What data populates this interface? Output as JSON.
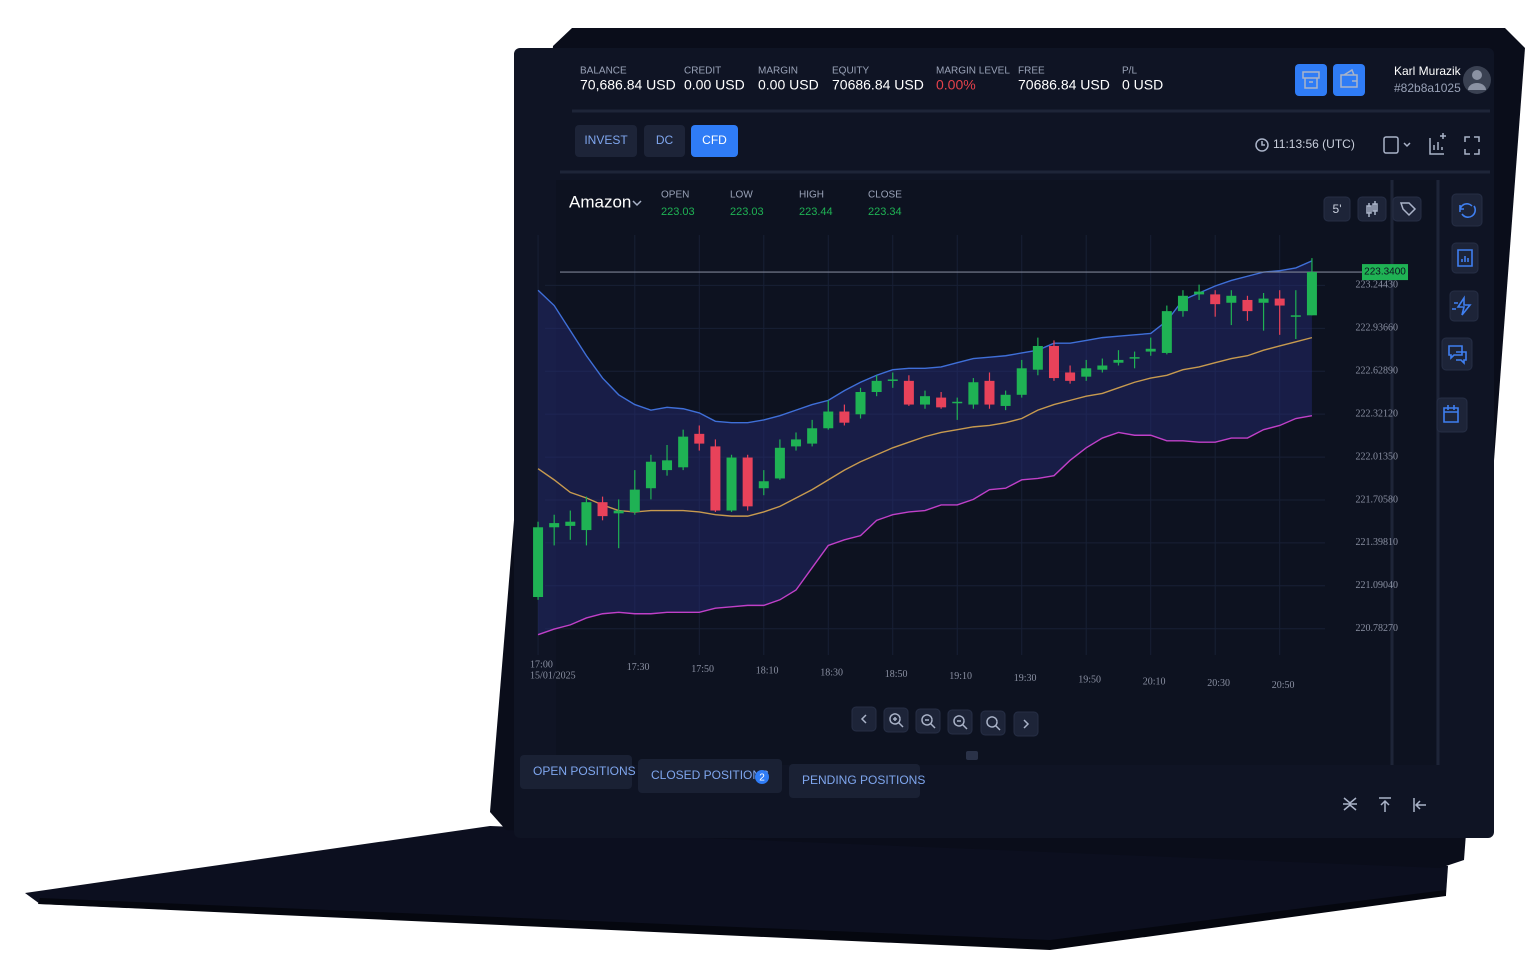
{
  "header": {
    "account": [
      {
        "label": "BALANCE",
        "value": "70,686.84 USD"
      },
      {
        "label": "CREDIT",
        "value": "0.00 USD"
      },
      {
        "label": "MARGIN",
        "value": "0.00 USD"
      },
      {
        "label": "EQUITY",
        "value": "70686.84 USD"
      },
      {
        "label": "MARGIN LEVEL",
        "value": "0.00%",
        "color": "#e5414b"
      },
      {
        "label": "FREE",
        "value": "70686.84 USD"
      },
      {
        "label": "P/L",
        "value": "0 USD"
      }
    ],
    "user": {
      "name": "Karl Murazik",
      "id": "#82b8a1025"
    }
  },
  "toolbar": {
    "tabs": [
      "INVEST",
      "DC",
      "CFD"
    ],
    "active_tab": 2,
    "time": "11:13:56 (UTC)"
  },
  "chart_data": {
    "type": "candlestick",
    "title": "Amazon",
    "interval": "5'",
    "stats": [
      {
        "label": "OPEN",
        "value": 223.03
      },
      {
        "label": "LOW",
        "value": 223.03
      },
      {
        "label": "HIGH",
        "value": 223.44
      },
      {
        "label": "CLOSE",
        "value": 223.34
      }
    ],
    "categories": [
      "17:00",
      null,
      null,
      null,
      null,
      null,
      "17:30",
      null,
      null,
      null,
      "17:50",
      null,
      null,
      null,
      "18:10",
      null,
      null,
      null,
      "18:30",
      null,
      null,
      null,
      "18:50",
      null,
      null,
      null,
      "19:10",
      null,
      null,
      null,
      "19:30",
      null,
      null,
      null,
      "19:50",
      null,
      null,
      null,
      "20:10",
      null,
      null,
      null,
      "20:30",
      null,
      null,
      null,
      "20:50",
      null,
      null
    ],
    "date_label": "15/01/2025",
    "open": [
      221.01,
      221.51,
      221.52,
      221.49,
      221.69,
      221.61,
      221.62,
      221.79,
      221.92,
      221.94,
      222.18,
      222.09,
      221.63,
      222.01,
      221.79,
      221.86,
      222.09,
      222.11,
      222.22,
      222.34,
      222.32,
      222.48,
      222.56,
      222.56,
      222.39,
      222.44,
      222.4,
      222.39,
      222.56,
      222.38,
      222.46,
      222.64,
      222.81,
      222.62,
      222.59,
      222.64,
      222.69,
      222.72,
      222.77,
      222.76,
      223.06,
      223.18,
      223.18,
      223.12,
      223.14,
      223.12,
      223.15,
      223.02,
      223.03
    ],
    "high": [
      221.55,
      221.6,
      221.63,
      221.73,
      221.73,
      221.71,
      221.92,
      222.03,
      222.1,
      222.21,
      222.24,
      222.14,
      222.03,
      222.03,
      221.92,
      222.14,
      222.19,
      222.28,
      222.42,
      222.39,
      222.51,
      222.6,
      222.62,
      222.6,
      222.49,
      222.48,
      222.44,
      222.58,
      222.62,
      222.49,
      222.71,
      222.87,
      222.85,
      222.67,
      222.71,
      222.72,
      222.78,
      222.77,
      222.87,
      223.1,
      223.21,
      223.25,
      223.21,
      223.21,
      223.17,
      223.19,
      223.21,
      223.21,
      223.44
    ],
    "low": [
      220.99,
      221.38,
      221.42,
      221.38,
      221.56,
      221.36,
      221.6,
      221.71,
      221.88,
      221.92,
      222.06,
      221.62,
      221.62,
      221.63,
      221.74,
      221.85,
      222.06,
      222.09,
      222.21,
      222.24,
      222.29,
      222.45,
      222.51,
      222.38,
      222.36,
      222.36,
      222.28,
      222.36,
      222.36,
      222.35,
      222.44,
      222.6,
      222.56,
      222.54,
      222.56,
      222.62,
      222.67,
      222.65,
      222.74,
      222.75,
      223.02,
      223.14,
      223.02,
      222.96,
      222.99,
      222.92,
      222.89,
      222.86,
      223.03
    ],
    "close": [
      221.51,
      221.54,
      221.55,
      221.69,
      221.59,
      221.63,
      221.78,
      221.98,
      221.99,
      222.16,
      222.11,
      221.63,
      222.01,
      221.66,
      221.84,
      222.08,
      222.14,
      222.22,
      222.34,
      222.26,
      222.48,
      222.56,
      222.57,
      222.39,
      222.45,
      222.37,
      222.41,
      222.55,
      222.39,
      222.46,
      222.65,
      222.81,
      222.58,
      222.56,
      222.65,
      222.67,
      222.71,
      222.73,
      222.79,
      223.06,
      223.17,
      223.2,
      223.11,
      223.17,
      223.06,
      223.15,
      223.1,
      223.03,
      223.34
    ],
    "up_color": "#1fb254",
    "down_color": "#e8425a",
    "bands": {
      "fill": "#262c78",
      "upper": {
        "color": "#3f6fd8",
        "values": [
          223.21,
          223.1,
          222.92,
          222.74,
          222.58,
          222.46,
          222.39,
          222.35,
          222.37,
          222.36,
          222.33,
          222.27,
          222.26,
          222.26,
          222.28,
          222.31,
          222.35,
          222.39,
          222.42,
          222.49,
          222.55,
          222.6,
          222.64,
          222.65,
          222.65,
          222.66,
          222.69,
          222.72,
          222.73,
          222.74,
          222.76,
          222.78,
          222.83,
          222.83,
          222.85,
          222.87,
          222.88,
          222.89,
          222.9,
          222.99,
          223.14,
          223.19,
          223.24,
          223.28,
          223.31,
          223.34,
          223.35,
          223.37,
          223.42
        ]
      },
      "middle": {
        "color": "#c79a4f",
        "values": [
          221.93,
          221.85,
          221.76,
          221.72,
          221.67,
          221.63,
          221.62,
          221.63,
          221.63,
          221.63,
          221.62,
          221.6,
          221.59,
          221.59,
          221.62,
          221.66,
          221.72,
          221.78,
          221.85,
          221.92,
          221.98,
          222.03,
          222.08,
          222.12,
          222.16,
          222.19,
          222.21,
          222.23,
          222.24,
          222.26,
          222.29,
          222.35,
          222.39,
          222.42,
          222.45,
          222.47,
          222.51,
          222.55,
          222.58,
          222.6,
          222.64,
          222.66,
          222.69,
          222.72,
          222.74,
          222.78,
          222.81,
          222.84,
          222.87
        ]
      },
      "lower": {
        "color": "#c040c8",
        "values": [
          220.74,
          220.78,
          220.81,
          220.86,
          220.89,
          220.9,
          220.89,
          220.89,
          220.9,
          220.9,
          220.9,
          220.93,
          220.94,
          220.95,
          220.95,
          220.99,
          221.06,
          221.22,
          221.38,
          221.42,
          221.45,
          221.56,
          221.6,
          221.62,
          221.63,
          221.67,
          221.67,
          221.71,
          221.78,
          221.79,
          221.85,
          221.86,
          221.88,
          221.99,
          222.08,
          222.15,
          222.19,
          222.17,
          222.17,
          222.13,
          222.13,
          222.12,
          222.12,
          222.15,
          222.15,
          222.21,
          222.24,
          222.29,
          222.31
        ]
      }
    },
    "price_line": {
      "value": 223.34,
      "label": "223.3400"
    },
    "ylim": [
      220.63,
      223.57
    ],
    "yticks": [
      {
        "value": 223.2443,
        "label": "223.24430"
      },
      {
        "value": 222.9366,
        "label": "222.93660"
      },
      {
        "value": 222.6289,
        "label": "222.62890"
      },
      {
        "value": 222.3212,
        "label": "222.32120"
      },
      {
        "value": 222.0135,
        "label": "222.01350"
      },
      {
        "value": 221.7058,
        "label": "221.70580"
      },
      {
        "value": 221.3981,
        "label": "221.39810"
      },
      {
        "value": 221.0904,
        "label": "221.09040"
      },
      {
        "value": 220.7827,
        "label": "220.78270"
      }
    ],
    "grid": true
  },
  "positions": {
    "tabs": [
      "OPEN POSITIONS",
      "CLOSED POSITIONS",
      "PENDING POSITIONS"
    ],
    "closed_count": 2
  }
}
